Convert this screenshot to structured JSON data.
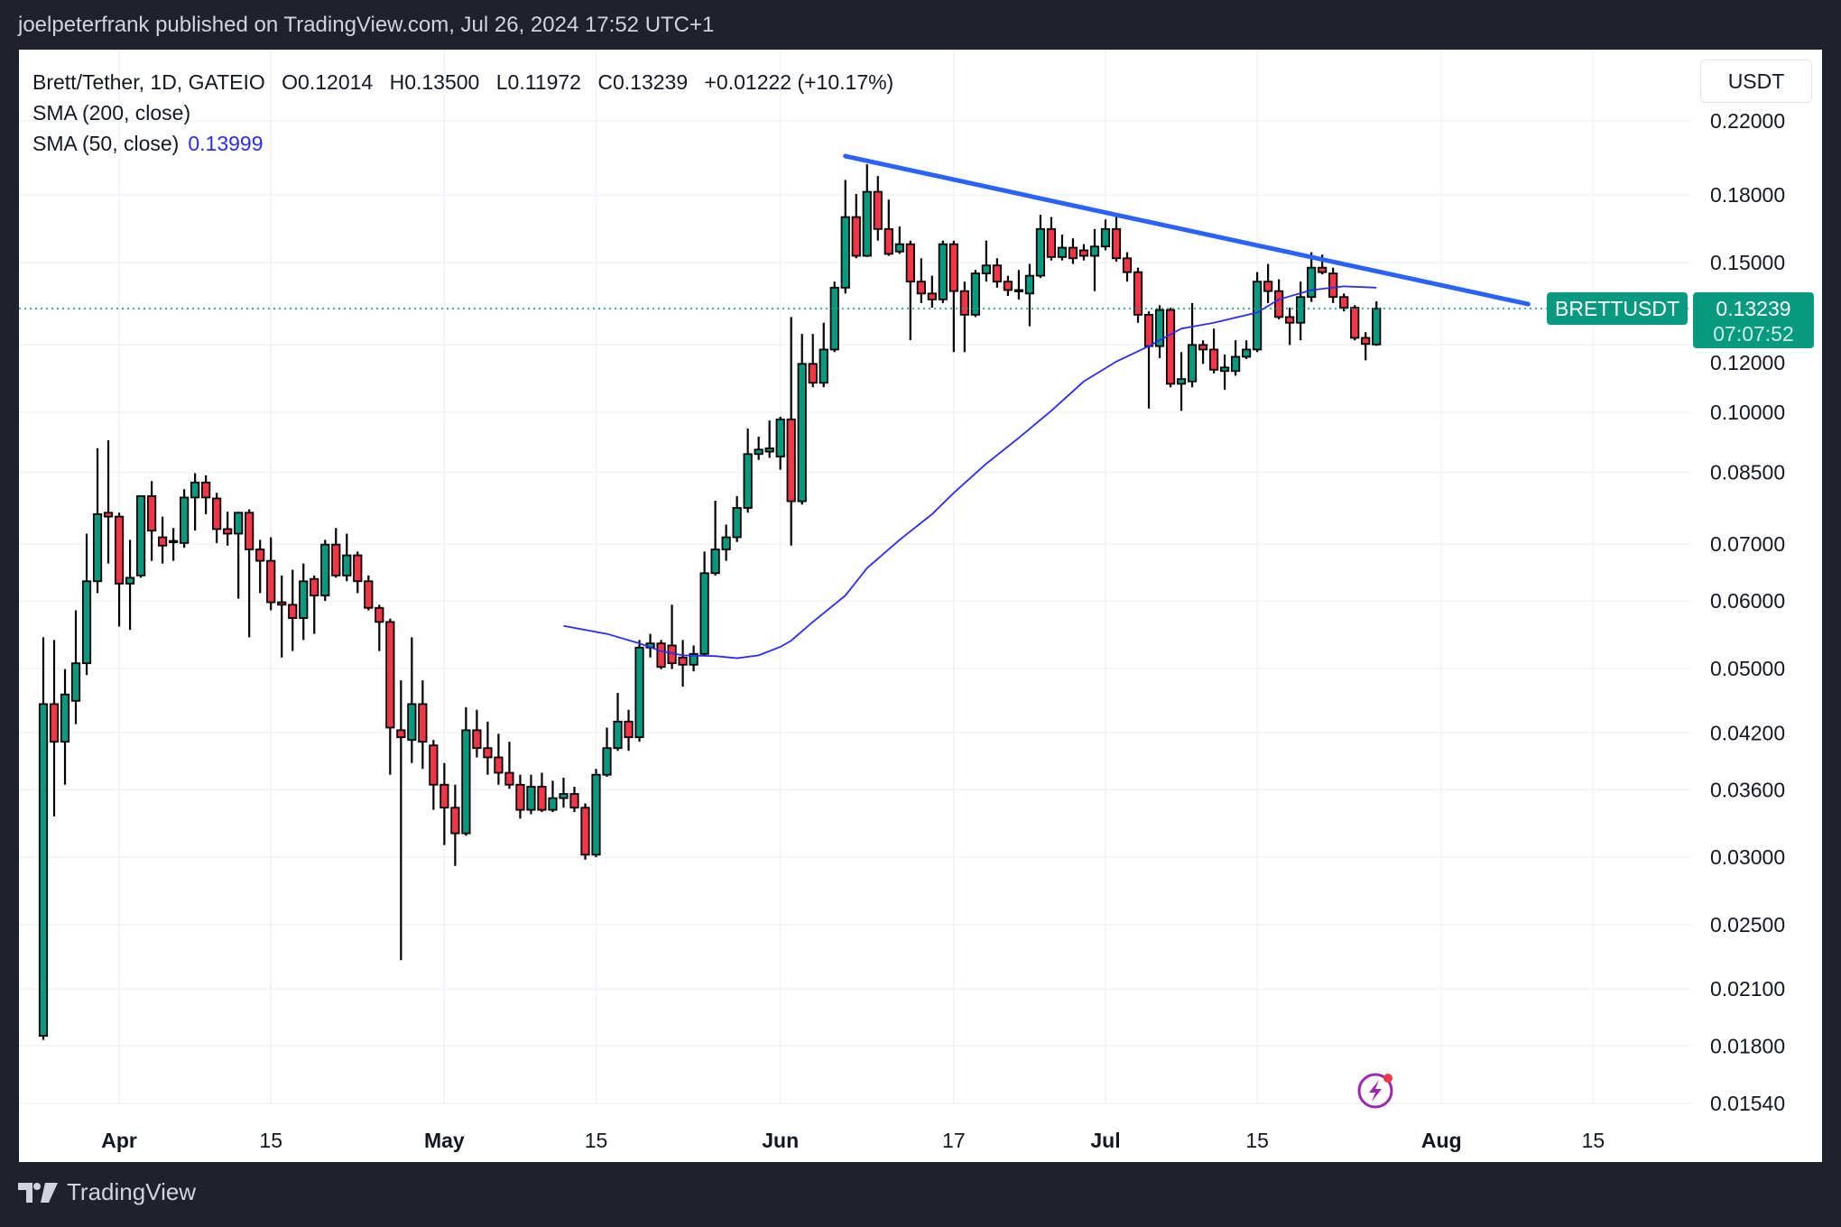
{
  "header": {
    "published_line": "joelpeterfrank published on TradingView.com, Jul 26, 2024 17:52 UTC+1"
  },
  "legend": {
    "symbol": "Brett/Tether, 1D, GATEIO",
    "open": "O0.12014",
    "high": "H0.13500",
    "low": "L0.11972",
    "close": "C0.13239",
    "change": "+0.01222 (+10.17%)",
    "sma200": "SMA (200, close)",
    "sma50": "SMA (50, close)",
    "sma50_value": "0.13999"
  },
  "currency_button": "USDT",
  "footer": {
    "brand": "TradingView",
    "logo_icon": "tradingview-logo-icon"
  },
  "colors": {
    "up": "#089981",
    "down": "#f23645",
    "sma50": "#2a2cf4",
    "trendline": "#2962ff",
    "price_label": "#089981"
  },
  "chart_data": {
    "type": "candlestick",
    "title": "",
    "y_scale": "log",
    "ylim": [
      0.0154,
      0.22
    ],
    "xlim": [
      "2024-03-23",
      "2024-08-23"
    ],
    "grid": true,
    "y_ticks": [
      "0.22000",
      "0.18000",
      "0.15000",
      "0.12000",
      "0.10000",
      "0.08500",
      "0.07000",
      "0.06000",
      "0.05000",
      "0.04200",
      "0.03600",
      "0.03000",
      "0.02500",
      "0.02100",
      "0.01800",
      "0.01540"
    ],
    "x_ticks": [
      {
        "date": "2024-04-01",
        "label": "Apr",
        "bold": true
      },
      {
        "date": "2024-04-15",
        "label": "15",
        "bold": false
      },
      {
        "date": "2024-05-01",
        "label": "May",
        "bold": true
      },
      {
        "date": "2024-05-15",
        "label": "15",
        "bold": false
      },
      {
        "date": "2024-06-01",
        "label": "Jun",
        "bold": true
      },
      {
        "date": "2024-06-17",
        "label": "17",
        "bold": false
      },
      {
        "date": "2024-07-01",
        "label": "Jul",
        "bold": true
      },
      {
        "date": "2024-07-15",
        "label": "15",
        "bold": false
      },
      {
        "date": "2024-08-01",
        "label": "Aug",
        "bold": true
      },
      {
        "date": "2024-08-15",
        "label": "15",
        "bold": false
      }
    ],
    "candle_fields": [
      "date",
      "open",
      "high",
      "low",
      "close"
    ],
    "candles": [
      [
        "2024-03-25",
        0.0185,
        0.0544,
        0.0183,
        0.0454
      ],
      [
        "2024-03-26",
        0.0454,
        0.054,
        0.0335,
        0.041
      ],
      [
        "2024-03-27",
        0.041,
        0.0499,
        0.0365,
        0.0466
      ],
      [
        "2024-03-28",
        0.0458,
        0.0585,
        0.043,
        0.0507
      ],
      [
        "2024-03-29",
        0.0507,
        0.072,
        0.0491,
        0.0633
      ],
      [
        "2024-03-30",
        0.0633,
        0.0907,
        0.0613,
        0.0759
      ],
      [
        "2024-03-31",
        0.0762,
        0.0927,
        0.0664,
        0.0754
      ],
      [
        "2024-04-01",
        0.0754,
        0.0762,
        0.056,
        0.0629
      ],
      [
        "2024-04-02",
        0.0629,
        0.0708,
        0.0555,
        0.0639
      ],
      [
        "2024-04-03",
        0.0643,
        0.0799,
        0.0639,
        0.0797
      ],
      [
        "2024-04-04",
        0.0797,
        0.083,
        0.0669,
        0.0726
      ],
      [
        "2024-04-05",
        0.0713,
        0.0754,
        0.0664,
        0.0697
      ],
      [
        "2024-04-06",
        0.0704,
        0.0731,
        0.0669,
        0.0706
      ],
      [
        "2024-04-07",
        0.0702,
        0.0812,
        0.0693,
        0.0794
      ],
      [
        "2024-04-08",
        0.0794,
        0.0848,
        0.0726,
        0.0827
      ],
      [
        "2024-04-09",
        0.0827,
        0.0843,
        0.0759,
        0.0794
      ],
      [
        "2024-04-10",
        0.0792,
        0.0804,
        0.0702,
        0.0729
      ],
      [
        "2024-04-11",
        0.0729,
        0.0764,
        0.0697,
        0.072
      ],
      [
        "2024-04-12",
        0.072,
        0.0764,
        0.0604,
        0.0762
      ],
      [
        "2024-04-13",
        0.0762,
        0.0769,
        0.0544,
        0.069
      ],
      [
        "2024-04-14",
        0.069,
        0.0708,
        0.0613,
        0.0669
      ],
      [
        "2024-04-15",
        0.0669,
        0.0713,
        0.0585,
        0.0598
      ],
      [
        "2024-04-16",
        0.0598,
        0.0643,
        0.0515,
        0.0594
      ],
      [
        "2024-04-17",
        0.0594,
        0.0653,
        0.0524,
        0.0573
      ],
      [
        "2024-04-18",
        0.0573,
        0.0664,
        0.054,
        0.0633
      ],
      [
        "2024-04-19",
        0.0637,
        0.0643,
        0.0549,
        0.0609
      ],
      [
        "2024-04-20",
        0.0609,
        0.0708,
        0.06,
        0.0699
      ],
      [
        "2024-04-21",
        0.0699,
        0.0731,
        0.0639,
        0.0643
      ],
      [
        "2024-04-22",
        0.0643,
        0.072,
        0.0633,
        0.0679
      ],
      [
        "2024-04-23",
        0.0679,
        0.0686,
        0.0613,
        0.0633
      ],
      [
        "2024-04-24",
        0.0633,
        0.0643,
        0.0585,
        0.0589
      ],
      [
        "2024-04-25",
        0.0589,
        0.0594,
        0.0524,
        0.0567
      ],
      [
        "2024-04-26",
        0.0567,
        0.0572,
        0.0375,
        0.0426
      ],
      [
        "2024-04-27",
        0.0423,
        0.0484,
        0.0227,
        0.0415
      ],
      [
        "2024-04-28",
        0.0412,
        0.0544,
        0.0387,
        0.0454
      ],
      [
        "2024-04-29",
        0.0454,
        0.0484,
        0.0381,
        0.041
      ],
      [
        "2024-04-30",
        0.0406,
        0.0412,
        0.0341,
        0.0365
      ],
      [
        "2024-05-01",
        0.0365,
        0.0387,
        0.031,
        0.0343
      ],
      [
        "2024-05-02",
        0.0343,
        0.0365,
        0.0293,
        0.032
      ],
      [
        "2024-05-03",
        0.032,
        0.045,
        0.0318,
        0.0423
      ],
      [
        "2024-05-04",
        0.0423,
        0.0447,
        0.0393,
        0.0403
      ],
      [
        "2024-05-05",
        0.0403,
        0.0433,
        0.0375,
        0.0393
      ],
      [
        "2024-05-06",
        0.0393,
        0.0419,
        0.0365,
        0.0377
      ],
      [
        "2024-05-07",
        0.0377,
        0.041,
        0.0361,
        0.0365
      ],
      [
        "2024-05-08",
        0.0365,
        0.0375,
        0.0333,
        0.0341
      ],
      [
        "2024-05-09",
        0.0341,
        0.0375,
        0.0337,
        0.0363
      ],
      [
        "2024-05-10",
        0.0363,
        0.0377,
        0.0339,
        0.0341
      ],
      [
        "2024-05-11",
        0.0341,
        0.0369,
        0.0339,
        0.0352
      ],
      [
        "2024-05-12",
        0.0352,
        0.0372,
        0.0343,
        0.0356
      ],
      [
        "2024-05-13",
        0.0356,
        0.0363,
        0.0339,
        0.0343
      ],
      [
        "2024-05-14",
        0.0343,
        0.0347,
        0.0298,
        0.0302
      ],
      [
        "2024-05-15",
        0.0302,
        0.0381,
        0.03,
        0.0375
      ],
      [
        "2024-05-16",
        0.0375,
        0.0426,
        0.0373,
        0.0403
      ],
      [
        "2024-05-17",
        0.0403,
        0.0468,
        0.04,
        0.0433
      ],
      [
        "2024-05-18",
        0.0433,
        0.0447,
        0.04,
        0.0415
      ],
      [
        "2024-05-19",
        0.0415,
        0.054,
        0.041,
        0.0529
      ],
      [
        "2024-05-20",
        0.0529,
        0.0549,
        0.0515,
        0.0535
      ],
      [
        "2024-05-21",
        0.0535,
        0.054,
        0.0499,
        0.0502
      ],
      [
        "2024-05-22",
        0.0532,
        0.0594,
        0.0499,
        0.0507
      ],
      [
        "2024-05-23",
        0.0515,
        0.054,
        0.0476,
        0.0505
      ],
      [
        "2024-05-24",
        0.0505,
        0.0532,
        0.0496,
        0.052
      ],
      [
        "2024-05-25",
        0.052,
        0.0686,
        0.0518,
        0.0647
      ],
      [
        "2024-05-26",
        0.0647,
        0.0787,
        0.0643,
        0.069
      ],
      [
        "2024-05-27",
        0.069,
        0.0738,
        0.0669,
        0.0713
      ],
      [
        "2024-05-28",
        0.0713,
        0.0797,
        0.0704,
        0.0772
      ],
      [
        "2024-05-29",
        0.0772,
        0.0957,
        0.0762,
        0.0893
      ],
      [
        "2024-05-30",
        0.0893,
        0.0936,
        0.0879,
        0.0904
      ],
      [
        "2024-05-31",
        0.0899,
        0.0978,
        0.0884,
        0.0907
      ],
      [
        "2024-06-01",
        0.0887,
        0.0988,
        0.0856,
        0.0981
      ],
      [
        "2024-06-02",
        0.0981,
        0.1294,
        0.0697,
        0.0786
      ],
      [
        "2024-06-03",
        0.0786,
        0.1236,
        0.0779,
        0.114
      ],
      [
        "2024-06-04",
        0.114,
        0.1236,
        0.107,
        0.1083
      ],
      [
        "2024-06-05",
        0.1083,
        0.1274,
        0.107,
        0.1185
      ],
      [
        "2024-06-06",
        0.1185,
        0.1424,
        0.1177,
        0.1401
      ],
      [
        "2024-06-07",
        0.1401,
        0.1875,
        0.1379,
        0.1696
      ],
      [
        "2024-06-08",
        0.1696,
        0.1805,
        0.1517,
        0.1527
      ],
      [
        "2024-06-09",
        0.1527,
        0.1956,
        0.1522,
        0.1816
      ],
      [
        "2024-06-10",
        0.1816,
        0.1895,
        0.1591,
        0.1642
      ],
      [
        "2024-06-11",
        0.1642,
        0.1778,
        0.1527,
        0.1535
      ],
      [
        "2024-06-12",
        0.1545,
        0.1653,
        0.1535,
        0.1576
      ],
      [
        "2024-06-13",
        0.1576,
        0.1591,
        0.1215,
        0.1424
      ],
      [
        "2024-06-14",
        0.1424,
        0.1517,
        0.1344,
        0.1379
      ],
      [
        "2024-06-15",
        0.1379,
        0.1447,
        0.1327,
        0.1357
      ],
      [
        "2024-06-16",
        0.1357,
        0.1591,
        0.1344,
        0.1576
      ],
      [
        "2024-06-17",
        0.1576,
        0.1591,
        0.1177,
        0.1388
      ],
      [
        "2024-06-18",
        0.1388,
        0.1424,
        0.1177,
        0.1302
      ],
      [
        "2024-06-19",
        0.1302,
        0.147,
        0.1294,
        0.1456
      ],
      [
        "2024-06-20",
        0.1456,
        0.1591,
        0.1424,
        0.1488
      ],
      [
        "2024-06-21",
        0.1488,
        0.1517,
        0.1401,
        0.1424
      ],
      [
        "2024-06-22",
        0.1424,
        0.1447,
        0.137,
        0.1392
      ],
      [
        "2024-06-23",
        0.1392,
        0.147,
        0.1357,
        0.1388
      ],
      [
        "2024-06-24",
        0.1379,
        0.1494,
        0.1262,
        0.1447
      ],
      [
        "2024-06-25",
        0.1447,
        0.1706,
        0.1438,
        0.1642
      ],
      [
        "2024-06-26",
        0.1642,
        0.1696,
        0.1508,
        0.1522
      ],
      [
        "2024-06-27",
        0.1522,
        0.1617,
        0.1508,
        0.1561
      ],
      [
        "2024-06-28",
        0.1561,
        0.1601,
        0.1494,
        0.1517
      ],
      [
        "2024-06-29",
        0.155,
        0.1576,
        0.1508,
        0.1527
      ],
      [
        "2024-06-30",
        0.1527,
        0.1642,
        0.1388,
        0.1566
      ],
      [
        "2024-07-01",
        0.1566,
        0.1685,
        0.155,
        0.1642
      ],
      [
        "2024-07-02",
        0.1642,
        0.1696,
        0.1503,
        0.1517
      ],
      [
        "2024-07-03",
        0.1517,
        0.1542,
        0.1424,
        0.1461
      ],
      [
        "2024-07-04",
        0.1461,
        0.1479,
        0.1274,
        0.1302
      ],
      [
        "2024-07-05",
        0.1302,
        0.1314,
        0.101,
        0.1196
      ],
      [
        "2024-07-06",
        0.1196,
        0.1336,
        0.1158,
        0.1319
      ],
      [
        "2024-07-07",
        0.1319,
        0.1327,
        0.107,
        0.108
      ],
      [
        "2024-07-08",
        0.108,
        0.1177,
        0.1004,
        0.1094
      ],
      [
        "2024-07-09",
        0.1087,
        0.1344,
        0.107,
        0.12
      ],
      [
        "2024-07-10",
        0.12,
        0.1215,
        0.114,
        0.1185
      ],
      [
        "2024-07-11",
        0.1185,
        0.1254,
        0.1111,
        0.1122
      ],
      [
        "2024-07-12",
        0.1118,
        0.1169,
        0.1063,
        0.1129
      ],
      [
        "2024-07-13",
        0.1118,
        0.1215,
        0.1104,
        0.1162
      ],
      [
        "2024-07-14",
        0.1162,
        0.1215,
        0.1155,
        0.1185
      ],
      [
        "2024-07-15",
        0.1185,
        0.1461,
        0.1177,
        0.1424
      ],
      [
        "2024-07-16",
        0.1424,
        0.1494,
        0.1344,
        0.1388
      ],
      [
        "2024-07-17",
        0.1388,
        0.1433,
        0.1286,
        0.1294
      ],
      [
        "2024-07-18",
        0.1294,
        0.1327,
        0.12,
        0.1274
      ],
      [
        "2024-07-19",
        0.1274,
        0.1424,
        0.1215,
        0.1366
      ],
      [
        "2024-07-20",
        0.1366,
        0.1542,
        0.1348,
        0.1479
      ],
      [
        "2024-07-21",
        0.1479,
        0.1532,
        0.1452,
        0.1461
      ],
      [
        "2024-07-22",
        0.1456,
        0.1479,
        0.1344,
        0.1366
      ],
      [
        "2024-07-23",
        0.1366,
        0.1379,
        0.1314,
        0.1327
      ],
      [
        "2024-07-24",
        0.1327,
        0.1336,
        0.1215,
        0.1223
      ],
      [
        "2024-07-25",
        0.1223,
        0.1242,
        0.1151,
        0.1203
      ],
      [
        "2024-07-26",
        0.12014,
        0.135,
        0.11972,
        0.13239
      ]
    ],
    "sma50": [
      [
        "2024-05-12",
        0.0561
      ],
      [
        "2024-05-16",
        0.0549
      ],
      [
        "2024-05-19",
        0.0535
      ],
      [
        "2024-05-21",
        0.0524
      ],
      [
        "2024-05-23",
        0.0518
      ],
      [
        "2024-05-26",
        0.0517
      ],
      [
        "2024-05-28",
        0.0514
      ],
      [
        "2024-05-30",
        0.0518
      ],
      [
        "2024-06-01",
        0.053
      ],
      [
        "2024-06-02",
        0.0539
      ],
      [
        "2024-06-04",
        0.0567
      ],
      [
        "2024-06-07",
        0.0609
      ],
      [
        "2024-06-09",
        0.0656
      ],
      [
        "2024-06-12",
        0.0708
      ],
      [
        "2024-06-15",
        0.0759
      ],
      [
        "2024-06-17",
        0.0804
      ],
      [
        "2024-06-20",
        0.087
      ],
      [
        "2024-06-23",
        0.0933
      ],
      [
        "2024-06-26",
        0.1004
      ],
      [
        "2024-06-29",
        0.1087
      ],
      [
        "2024-07-02",
        0.1147
      ],
      [
        "2024-07-05",
        0.1196
      ],
      [
        "2024-07-08",
        0.1254
      ],
      [
        "2024-07-11",
        0.1274
      ],
      [
        "2024-07-15",
        0.131
      ],
      [
        "2024-07-17",
        0.1357
      ],
      [
        "2024-07-20",
        0.1392
      ],
      [
        "2024-07-23",
        0.1406
      ],
      [
        "2024-07-26",
        0.1401
      ]
    ],
    "trendline": [
      [
        "2024-06-07",
        0.2
      ],
      [
        "2024-08-09",
        0.134
      ]
    ],
    "last_price": {
      "value": 0.13239,
      "label": "0.13239",
      "symbol": "BRETTUSDT",
      "countdown": "07:07:52"
    },
    "bolt_icon": "flash-alert-icon"
  }
}
